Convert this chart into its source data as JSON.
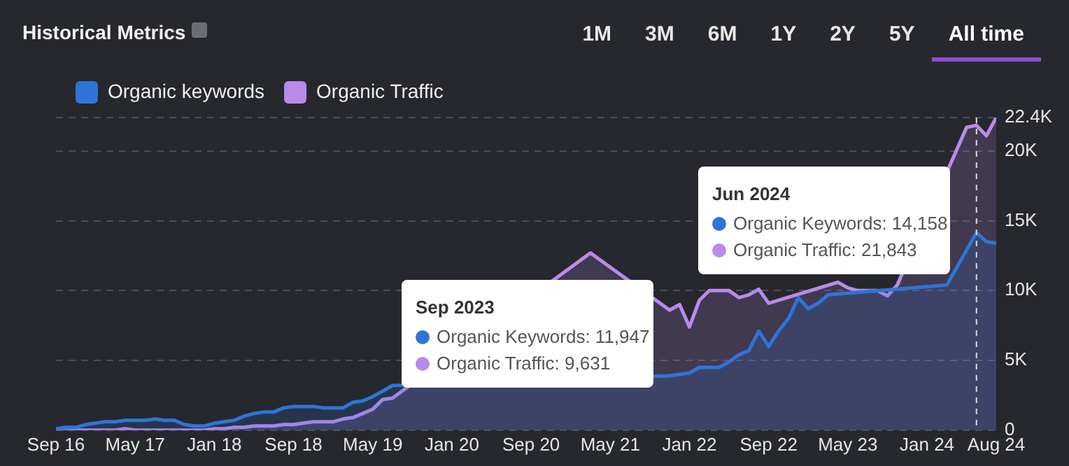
{
  "chart_data": {
    "type": "area",
    "title": "Historical Metrics",
    "x": [
      "2016-09",
      "2016-10",
      "2016-11",
      "2016-12",
      "2017-01",
      "2017-02",
      "2017-03",
      "2017-04",
      "2017-05",
      "2017-06",
      "2017-07",
      "2017-08",
      "2017-09",
      "2017-10",
      "2017-11",
      "2017-12",
      "2018-01",
      "2018-02",
      "2018-03",
      "2018-04",
      "2018-05",
      "2018-06",
      "2018-07",
      "2018-08",
      "2018-09",
      "2018-10",
      "2018-11",
      "2018-12",
      "2019-01",
      "2019-02",
      "2019-03",
      "2019-04",
      "2019-05",
      "2019-06",
      "2019-07",
      "2019-08",
      "2019-09",
      "2019-10",
      "2019-11",
      "2019-12",
      "2020-01",
      "2020-02",
      "2020-03",
      "2020-04",
      "2020-05",
      "2020-06",
      "2020-07",
      "2020-08",
      "2020-09",
      "2020-10",
      "2020-11",
      "2020-12",
      "2021-01",
      "2021-02",
      "2021-03",
      "2021-04",
      "2021-05",
      "2021-06",
      "2021-07",
      "2021-08",
      "2021-09",
      "2021-10",
      "2021-11",
      "2021-12",
      "2022-01",
      "2022-02",
      "2022-03",
      "2022-04",
      "2022-05",
      "2022-06",
      "2022-07",
      "2022-08",
      "2022-09",
      "2022-10",
      "2022-11",
      "2022-12",
      "2023-01",
      "2023-02",
      "2023-03",
      "2023-04",
      "2023-05",
      "2023-06",
      "2023-07",
      "2023-08",
      "2023-09",
      "2023-10",
      "2023-11",
      "2023-12",
      "2024-01",
      "2024-02",
      "2024-03",
      "2024-04",
      "2024-05",
      "2024-06",
      "2024-07",
      "2024-08"
    ],
    "series": [
      {
        "name": "Organic keywords",
        "color": "#2f74d8",
        "values": [
          100,
          200,
          200,
          400,
          500,
          600,
          600,
          700,
          700,
          700,
          800,
          700,
          700,
          400,
          300,
          300,
          500,
          600,
          700,
          1000,
          1200,
          1300,
          1300,
          1600,
          1700,
          1700,
          1700,
          1600,
          1600,
          1600,
          2000,
          2100,
          2400,
          2800,
          3200,
          null,
          null,
          null,
          null,
          null,
          null,
          null,
          null,
          null,
          null,
          null,
          null,
          null,
          null,
          null,
          null,
          null,
          null,
          null,
          null,
          null,
          null,
          null,
          null,
          null,
          null,
          null,
          3900,
          4000,
          4100,
          4500,
          4500,
          4500,
          4900,
          5400,
          5700,
          7100,
          6000,
          7100,
          8000,
          9500,
          8700,
          9100,
          9700,
          null,
          null,
          null,
          null,
          null,
          null,
          null,
          null,
          null,
          null,
          null,
          10400,
          null,
          null,
          14158,
          13500,
          13400
        ]
      },
      {
        "name": "Organic Traffic",
        "color": "#b98aec",
        "values": [
          0,
          0,
          0,
          0,
          0,
          0,
          0,
          100,
          0,
          0,
          0,
          0,
          0,
          0,
          0,
          0,
          100,
          100,
          200,
          200,
          300,
          300,
          300,
          400,
          400,
          500,
          600,
          600,
          600,
          800,
          900,
          1200,
          1500,
          2200,
          2300,
          null,
          null,
          null,
          null,
          null,
          null,
          null,
          null,
          null,
          null,
          null,
          null,
          null,
          null,
          null,
          null,
          null,
          null,
          null,
          12700,
          null,
          null,
          null,
          null,
          null,
          null,
          null,
          8600,
          9000,
          7400,
          9300,
          10000,
          10000,
          10000,
          9500,
          9700,
          10100,
          9100,
          null,
          null,
          null,
          null,
          null,
          null,
          10600,
          10200,
          10000,
          10000,
          10000,
          9631,
          10400,
          null,
          null,
          null,
          null,
          null,
          null,
          21700,
          21843,
          21100,
          22400
        ]
      }
    ],
    "xlim": [
      "2016-09",
      "2024-08"
    ],
    "xticks": [
      {
        "value": "2016-09",
        "label": "Sep 16"
      },
      {
        "value": "2017-05",
        "label": "May 17"
      },
      {
        "value": "2018-01",
        "label": "Jan 18"
      },
      {
        "value": "2018-09",
        "label": "Sep 18"
      },
      {
        "value": "2019-05",
        "label": "May 19"
      },
      {
        "value": "2020-01",
        "label": "Jan 20"
      },
      {
        "value": "2020-09",
        "label": "Sep 20"
      },
      {
        "value": "2021-05",
        "label": "May 21"
      },
      {
        "value": "2022-01",
        "label": "Jan 22"
      },
      {
        "value": "2022-09",
        "label": "Sep 22"
      },
      {
        "value": "2023-05",
        "label": "May 23"
      },
      {
        "value": "2024-01",
        "label": "Jan 24"
      },
      {
        "value": "2024-08",
        "label": "Aug 24"
      }
    ],
    "ylim": [
      0,
      22400
    ],
    "yticks": [
      {
        "value": 0,
        "label": "0"
      },
      {
        "value": 5000,
        "label": "5K"
      },
      {
        "value": 10000,
        "label": "10K"
      },
      {
        "value": 15000,
        "label": "15K"
      },
      {
        "value": 20000,
        "label": "20K"
      },
      {
        "value": 22400,
        "label": "22.4K"
      }
    ],
    "grid": "y",
    "legend": "top left",
    "ref_lines": [
      {
        "axis": "x",
        "value": "2024-06",
        "color": "#dddddd",
        "line_style": "dashed"
      }
    ],
    "annotations": [
      "1M",
      "3M",
      "6M",
      "1Y",
      "2Y",
      "5Y",
      "All time",
      "Sep 2023",
      "Organic Keywords: 11,947",
      "Organic Traffic: 9,631",
      "Jun 2024",
      "Organic Keywords: 14,158",
      "Organic Traffic: 21,843"
    ]
  }
}
